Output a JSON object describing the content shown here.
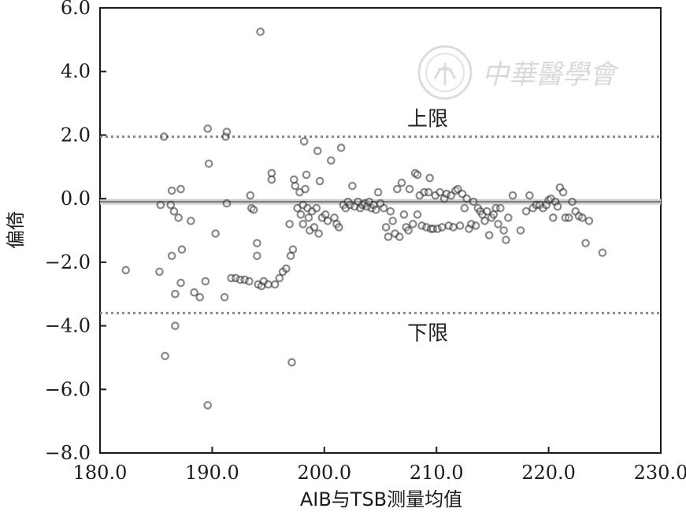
{
  "watermark": {
    "text": "中華醫學會"
  },
  "chart_data": {
    "type": "scatter",
    "title": "",
    "xlabel": "AIB与TSB测量均值",
    "ylabel": "偏倚",
    "xlim": [
      180.0,
      230.0
    ],
    "ylim": [
      -8.0,
      6.0
    ],
    "xticks": [
      "180.0",
      "190.0",
      "200.0",
      "210.0",
      "220.0",
      "230.0"
    ],
    "yticks": [
      "6.0",
      "4.0",
      "2.0",
      "0.0",
      "−2.0",
      "−4.0",
      "−6.0",
      "−8.0"
    ],
    "grid": false,
    "reference_lines": [
      {
        "label": "上限",
        "value": 1.95,
        "style": "dotted"
      },
      {
        "label": "",
        "value": -0.1,
        "style": "solid"
      },
      {
        "label": "下限",
        "value": -3.6,
        "style": "dotted"
      }
    ],
    "points": [
      [
        182.3,
        -2.25
      ],
      [
        185.3,
        -2.3
      ],
      [
        185.4,
        -0.2
      ],
      [
        185.7,
        1.95
      ],
      [
        185.8,
        -4.95
      ],
      [
        186.3,
        -0.2
      ],
      [
        186.4,
        0.25
      ],
      [
        186.4,
        -1.8
      ],
      [
        186.6,
        -0.4
      ],
      [
        186.7,
        -3.0
      ],
      [
        186.7,
        -4.0
      ],
      [
        187.0,
        -0.6
      ],
      [
        187.2,
        0.3
      ],
      [
        187.3,
        -1.6
      ],
      [
        187.2,
        -2.65
      ],
      [
        188.1,
        -0.7
      ],
      [
        188.4,
        -2.95
      ],
      [
        188.9,
        -3.1
      ],
      [
        189.4,
        -2.6
      ],
      [
        189.6,
        2.2
      ],
      [
        189.7,
        1.1
      ],
      [
        189.6,
        -6.5
      ],
      [
        190.3,
        -1.1
      ],
      [
        191.2,
        1.95
      ],
      [
        191.3,
        2.1
      ],
      [
        191.3,
        -0.15
      ],
      [
        191.1,
        -3.1
      ],
      [
        191.7,
        -2.5
      ],
      [
        192.1,
        -2.5
      ],
      [
        192.5,
        -2.55
      ],
      [
        192.9,
        -2.55
      ],
      [
        193.3,
        -2.6
      ],
      [
        193.4,
        0.1
      ],
      [
        193.5,
        -0.3
      ],
      [
        193.7,
        -0.35
      ],
      [
        194.0,
        -1.4
      ],
      [
        194.0,
        -1.8
      ],
      [
        194.1,
        -2.7
      ],
      [
        194.4,
        -2.75
      ],
      [
        194.6,
        -2.6
      ],
      [
        194.3,
        5.25
      ],
      [
        195.0,
        -2.7
      ],
      [
        195.3,
        0.8
      ],
      [
        195.3,
        0.6
      ],
      [
        195.6,
        -2.7
      ],
      [
        196.0,
        -2.5
      ],
      [
        196.3,
        -2.3
      ],
      [
        196.6,
        -2.2
      ],
      [
        196.9,
        -0.8
      ],
      [
        197.0,
        -1.8
      ],
      [
        197.2,
        -1.6
      ],
      [
        197.3,
        0.6
      ],
      [
        197.4,
        0.4
      ],
      [
        197.1,
        -5.15
      ],
      [
        197.6,
        -0.3
      ],
      [
        197.8,
        0.2
      ],
      [
        197.9,
        -0.5
      ],
      [
        198.1,
        -0.2
      ],
      [
        198.1,
        -0.8
      ],
      [
        198.2,
        1.8
      ],
      [
        198.3,
        0.3
      ],
      [
        198.4,
        0.75
      ],
      [
        198.5,
        -0.3
      ],
      [
        198.6,
        -0.6
      ],
      [
        198.7,
        -1.0
      ],
      [
        198.9,
        -0.4
      ],
      [
        199.1,
        -0.9
      ],
      [
        199.3,
        -0.3
      ],
      [
        199.4,
        1.5
      ],
      [
        199.5,
        -1.1
      ],
      [
        199.6,
        0.55
      ],
      [
        199.8,
        -0.6
      ],
      [
        200.1,
        -0.5
      ],
      [
        200.3,
        -0.7
      ],
      [
        200.6,
        1.2
      ],
      [
        200.9,
        -0.6
      ],
      [
        201.1,
        -0.8
      ],
      [
        201.3,
        -0.9
      ],
      [
        201.5,
        1.6
      ],
      [
        201.7,
        -0.2
      ],
      [
        201.9,
        -0.3
      ],
      [
        202.1,
        -0.1
      ],
      [
        202.3,
        -0.2
      ],
      [
        202.5,
        0.4
      ],
      [
        202.7,
        -0.25
      ],
      [
        203.0,
        -0.1
      ],
      [
        203.2,
        -0.3
      ],
      [
        203.4,
        -0.2
      ],
      [
        203.6,
        -0.15
      ],
      [
        203.8,
        -0.25
      ],
      [
        204.0,
        -0.1
      ],
      [
        204.2,
        -0.3
      ],
      [
        204.4,
        -0.2
      ],
      [
        204.6,
        -0.35
      ],
      [
        204.8,
        0.2
      ],
      [
        205.0,
        -0.15
      ],
      [
        205.3,
        -0.3
      ],
      [
        205.5,
        -0.9
      ],
      [
        205.7,
        -1.2
      ],
      [
        205.9,
        -0.4
      ],
      [
        206.1,
        -0.7
      ],
      [
        206.3,
        -1.1
      ],
      [
        206.5,
        0.3
      ],
      [
        206.7,
        -1.2
      ],
      [
        206.9,
        0.5
      ],
      [
        207.1,
        -0.5
      ],
      [
        207.3,
        -0.9
      ],
      [
        207.5,
        -1.0
      ],
      [
        207.6,
        0.3
      ],
      [
        207.9,
        -0.8
      ],
      [
        208.1,
        0.8
      ],
      [
        208.3,
        0.75
      ],
      [
        208.3,
        -0.5
      ],
      [
        208.5,
        0.1
      ],
      [
        208.7,
        -0.85
      ],
      [
        208.9,
        0.2
      ],
      [
        209.1,
        -0.9
      ],
      [
        209.3,
        0.2
      ],
      [
        209.4,
        0.65
      ],
      [
        209.5,
        -0.95
      ],
      [
        209.7,
        -0.95
      ],
      [
        209.9,
        0.1
      ],
      [
        210.1,
        -0.95
      ],
      [
        210.3,
        0.2
      ],
      [
        210.5,
        -0.9
      ],
      [
        210.7,
        0.0
      ],
      [
        210.9,
        0.15
      ],
      [
        211.1,
        -0.85
      ],
      [
        211.3,
        0.1
      ],
      [
        211.5,
        -0.9
      ],
      [
        211.7,
        0.25
      ],
      [
        211.9,
        0.3
      ],
      [
        212.1,
        -0.85
      ],
      [
        212.3,
        0.15
      ],
      [
        212.5,
        -0.3
      ],
      [
        212.7,
        0.0
      ],
      [
        212.9,
        -0.95
      ],
      [
        213.1,
        -0.8
      ],
      [
        213.3,
        -0.1
      ],
      [
        213.5,
        -0.85
      ],
      [
        213.7,
        -0.3
      ],
      [
        213.9,
        -0.4
      ],
      [
        214.1,
        -0.5
      ],
      [
        214.3,
        -0.7
      ],
      [
        214.5,
        -0.4
      ],
      [
        214.7,
        -1.15
      ],
      [
        214.9,
        -0.6
      ],
      [
        215.1,
        -0.5
      ],
      [
        215.3,
        -0.3
      ],
      [
        215.5,
        -0.8
      ],
      [
        215.7,
        -0.3
      ],
      [
        216.0,
        -1.0
      ],
      [
        216.2,
        -1.3
      ],
      [
        216.4,
        -0.6
      ],
      [
        216.8,
        0.1
      ],
      [
        217.5,
        -1.0
      ],
      [
        218.0,
        -0.4
      ],
      [
        218.3,
        0.1
      ],
      [
        218.6,
        -0.3
      ],
      [
        218.9,
        -0.2
      ],
      [
        219.2,
        -0.2
      ],
      [
        219.5,
        -0.3
      ],
      [
        219.8,
        -0.2
      ],
      [
        220.0,
        -0.05
      ],
      [
        220.2,
        0.0
      ],
      [
        220.4,
        -0.6
      ],
      [
        220.6,
        -0.1
      ],
      [
        220.8,
        -0.25
      ],
      [
        221.0,
        0.35
      ],
      [
        221.3,
        0.2
      ],
      [
        221.5,
        -0.6
      ],
      [
        221.8,
        -0.6
      ],
      [
        222.1,
        -0.1
      ],
      [
        222.4,
        -0.4
      ],
      [
        222.7,
        -0.55
      ],
      [
        223.0,
        -0.6
      ],
      [
        223.3,
        -1.4
      ],
      [
        223.6,
        -0.7
      ],
      [
        224.8,
        -1.7
      ]
    ]
  }
}
